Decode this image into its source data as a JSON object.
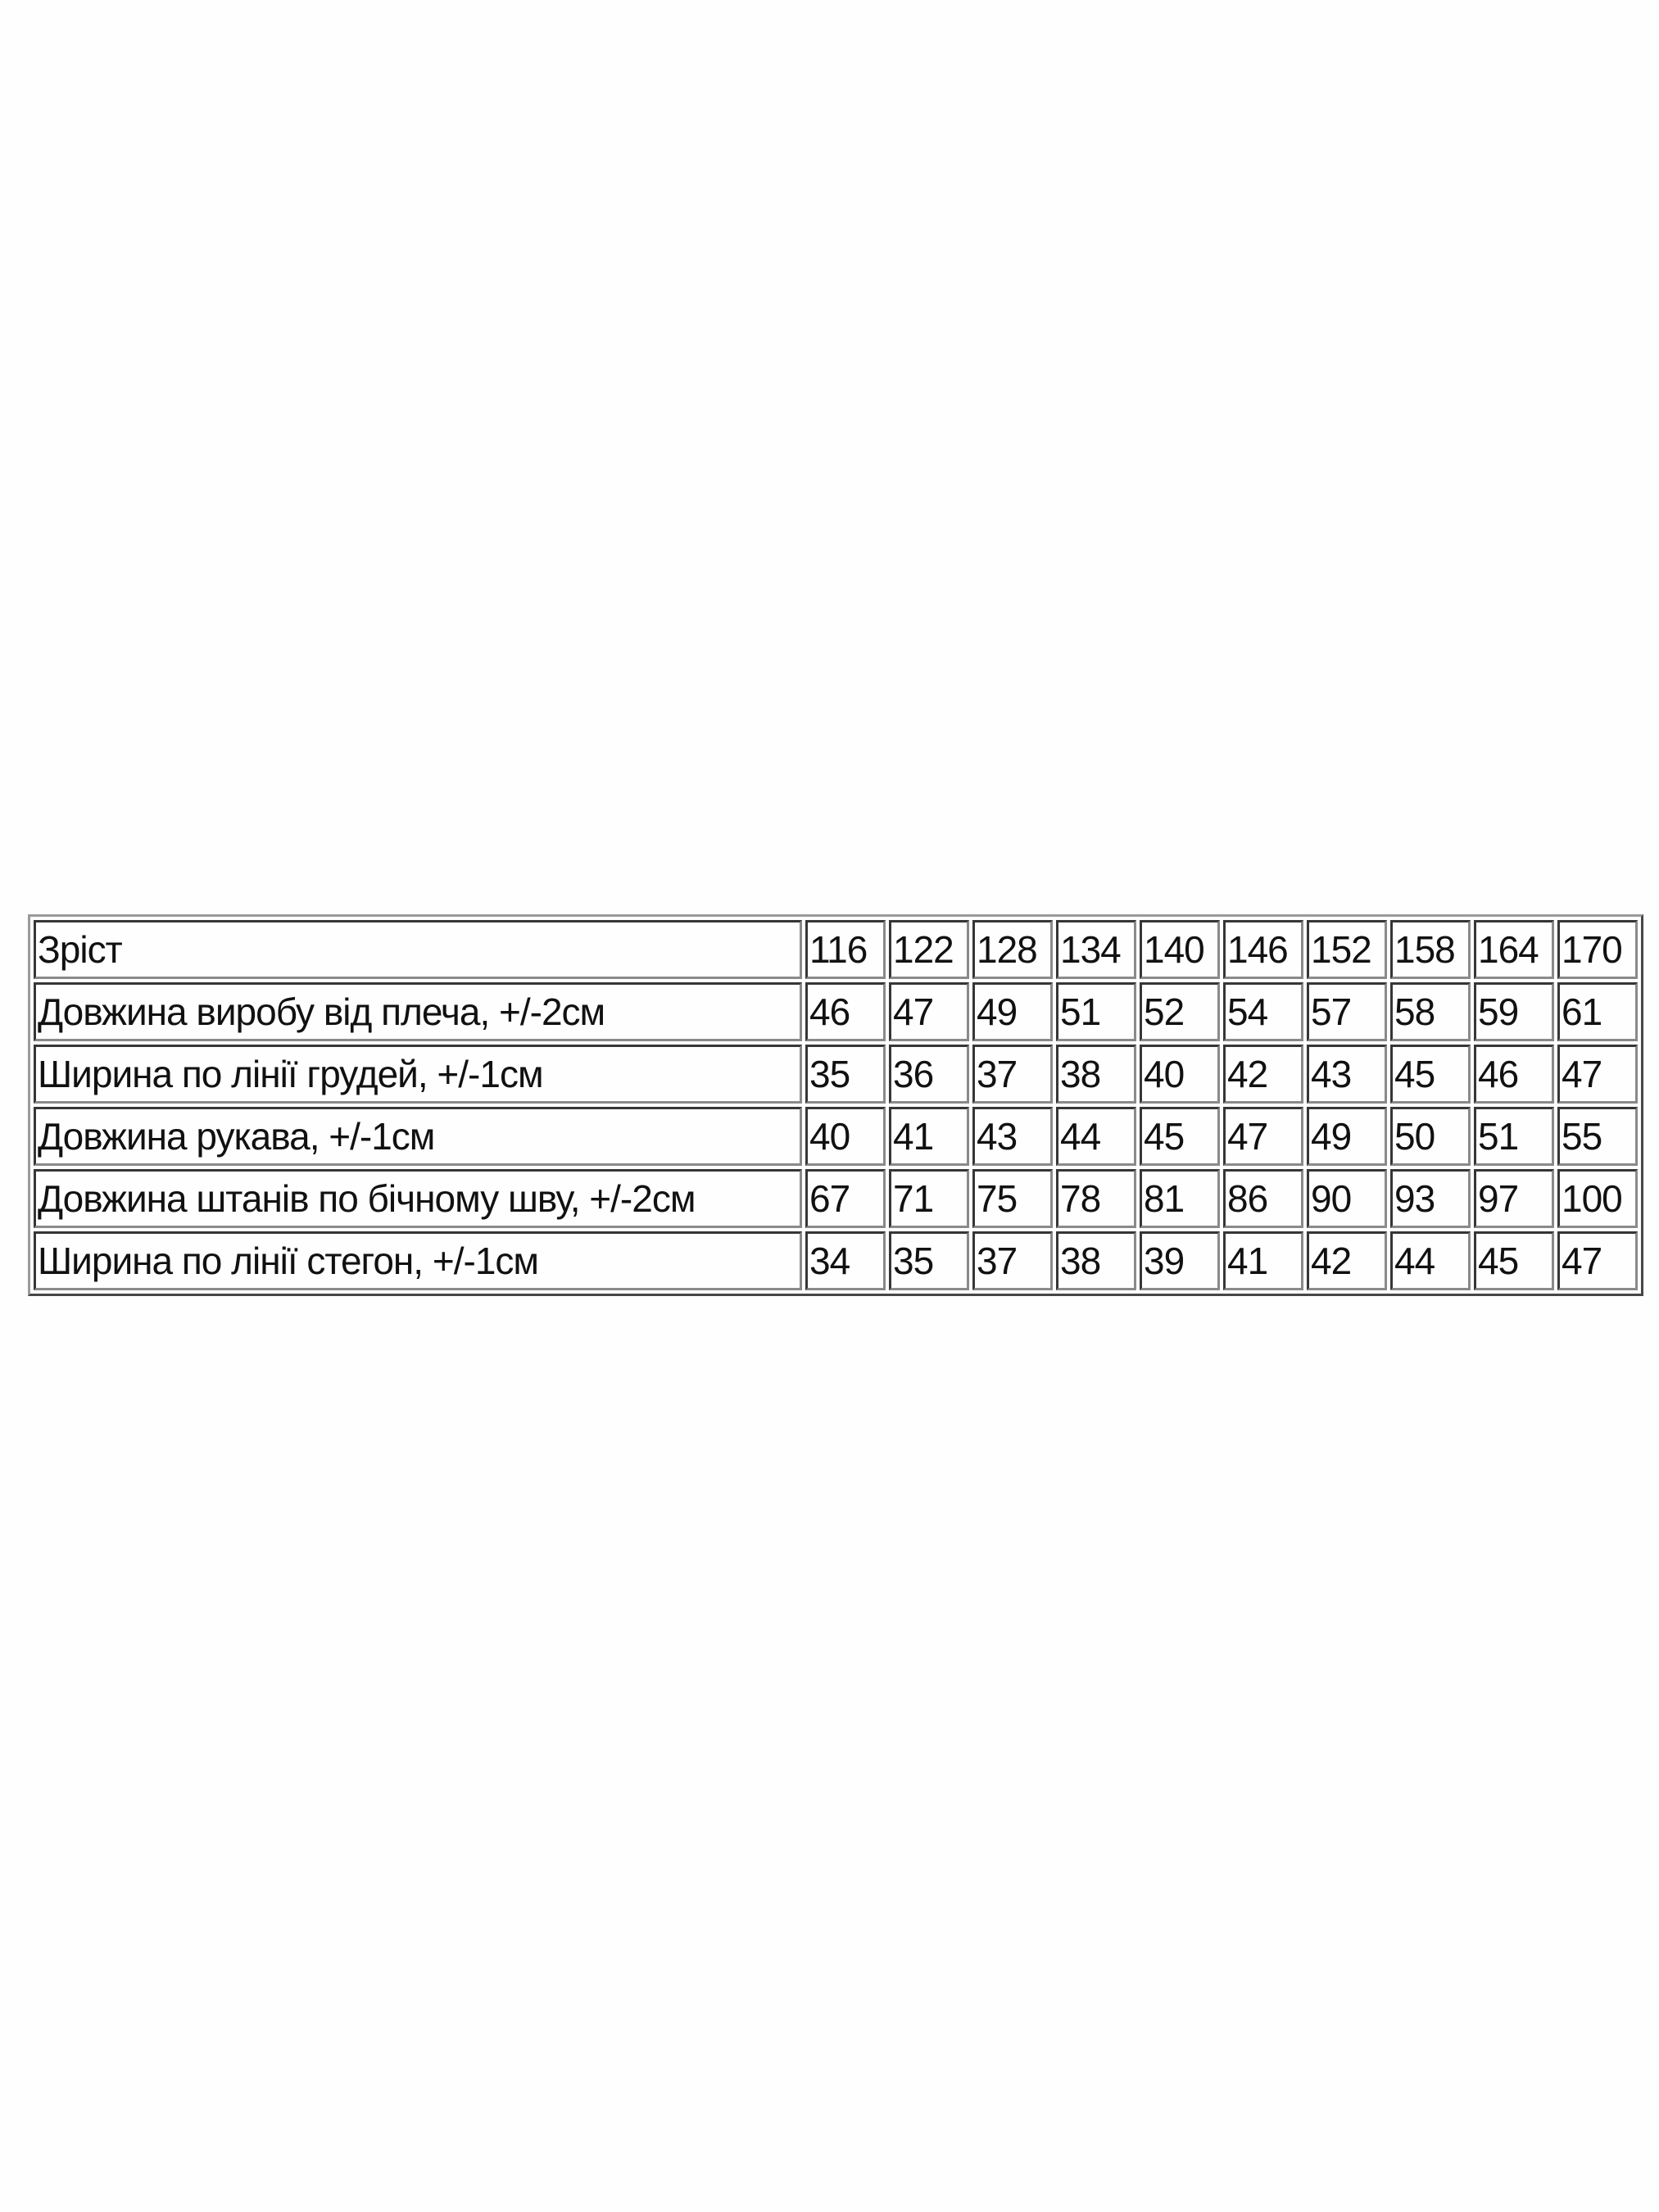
{
  "table": {
    "rows": [
      {
        "label": "Зріст",
        "values": [
          "116",
          "122",
          "128",
          "134",
          "140",
          "146",
          "152",
          "158",
          "164",
          "170"
        ]
      },
      {
        "label": "Довжина виробу від плеча, +/-2см",
        "values": [
          "46",
          "47",
          "49",
          "51",
          "52",
          "54",
          "57",
          "58",
          "59",
          "61"
        ]
      },
      {
        "label": "Ширина по лінії грудей, +/-1см",
        "values": [
          "35",
          "36",
          "37",
          "38",
          "40",
          "42",
          "43",
          "45",
          "46",
          "47"
        ]
      },
      {
        "label": "Довжина рукава, +/-1см",
        "values": [
          "40",
          "41",
          "43",
          "44",
          "45",
          "47",
          "49",
          "50",
          "51",
          "55"
        ]
      },
      {
        "label": "Довжина штанів по бічному шву, +/-2см",
        "values": [
          "67",
          "71",
          "75",
          "78",
          "81",
          "86",
          "90",
          "93",
          "97",
          "100"
        ]
      },
      {
        "label": "Ширина по лінії стегон, +/-1см",
        "values": [
          "34",
          "35",
          "37",
          "38",
          "39",
          "41",
          "42",
          "44",
          "45",
          "47"
        ]
      }
    ]
  }
}
